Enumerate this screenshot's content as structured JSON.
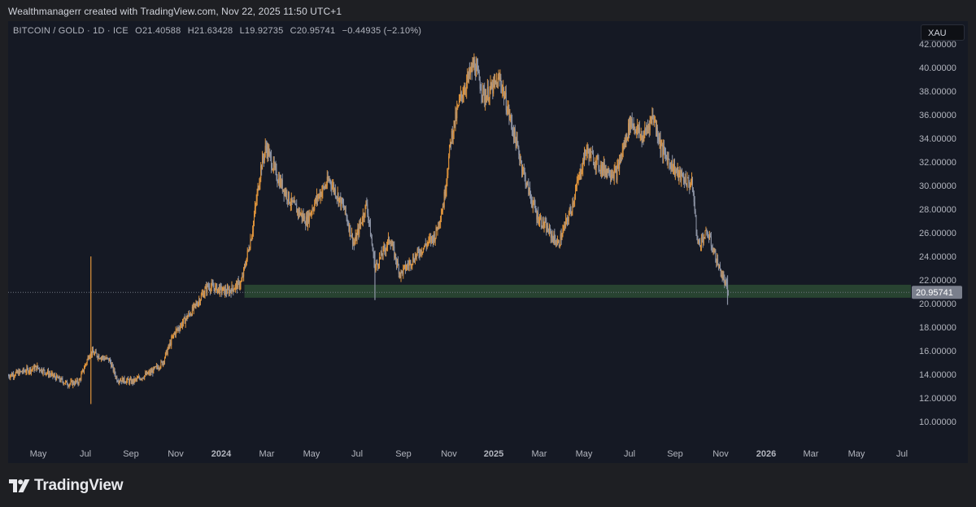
{
  "header": {
    "credit": "Wealthmanagerr created with TradingView.com, Nov 22, 2025 11:50 UTC+1"
  },
  "legend": {
    "symbol": "BITCOIN / GOLD · 1D · ICE",
    "open_label": "O",
    "open": "21.40588",
    "high_label": "H",
    "high": "21.63428",
    "low_label": "L",
    "low": "19.92735",
    "close_label": "C",
    "close": "20.95741",
    "change": "−0.44935 (−2.10%)"
  },
  "symbol_badge": "XAU",
  "branding": {
    "name": "TradingView",
    "icon": "tradingview-logo-icon"
  },
  "colors": {
    "background": "#151924",
    "up": "#e0943b",
    "down": "#8e95a6",
    "support_zone": "#2b4b34",
    "last_price_label": "#7a7f8c",
    "axis_text": "#b2b5be"
  },
  "chart_data": {
    "type": "candlestick",
    "title": "BITCOIN / GOLD · 1D · ICE",
    "xlabel": "",
    "ylabel": "",
    "ylim": [
      8.5,
      43.3
    ],
    "y_ticks": [
      "42.00000",
      "40.00000",
      "38.00000",
      "36.00000",
      "34.00000",
      "32.00000",
      "30.00000",
      "28.00000",
      "26.00000",
      "24.00000",
      "22.00000",
      "20.00000",
      "18.00000",
      "16.00000",
      "14.00000",
      "12.00000",
      "10.00000"
    ],
    "x_ticks": [
      "May",
      "Jul",
      "Sep",
      "Nov",
      "2024",
      "Mar",
      "May",
      "Jul",
      "Sep",
      "Nov",
      "2025",
      "Mar",
      "May",
      "Jul",
      "Sep",
      "Nov",
      "2026",
      "Mar",
      "May",
      "Jul"
    ],
    "x_ticks_bold": [
      "2024",
      "2025",
      "2026"
    ],
    "x_range": [
      "2023-04-01",
      "2026-07-25"
    ],
    "last_price": "20.95741",
    "support_zone": [
      20.5,
      21.6
    ],
    "grid": false,
    "legend_position": "top-left",
    "approx_close_path": [
      [
        "2023-04-01",
        13.9
      ],
      [
        "2023-05-10",
        14.6
      ],
      [
        "2023-06-20",
        13.2
      ],
      [
        "2023-07-05",
        13.4
      ],
      [
        "2023-07-20",
        15.9
      ],
      [
        "2023-08-15",
        15.2
      ],
      [
        "2023-08-25",
        13.6
      ],
      [
        "2023-09-15",
        13.4
      ],
      [
        "2023-10-10",
        14.2
      ],
      [
        "2023-10-25",
        15.0
      ],
      [
        "2023-11-10",
        17.5
      ],
      [
        "2023-12-05",
        19.5
      ],
      [
        "2023-12-25",
        21.5
      ],
      [
        "2024-01-20",
        21.0
      ],
      [
        "2024-02-08",
        21.8
      ],
      [
        "2024-02-22",
        26.0
      ],
      [
        "2024-03-05",
        31.5
      ],
      [
        "2024-03-12",
        33.3
      ],
      [
        "2024-03-25",
        31.0
      ],
      [
        "2024-04-15",
        28.5
      ],
      [
        "2024-05-05",
        27.0
      ],
      [
        "2024-05-20",
        29.0
      ],
      [
        "2024-06-05",
        30.5
      ],
      [
        "2024-06-25",
        28.0
      ],
      [
        "2024-07-08",
        25.0
      ],
      [
        "2024-07-25",
        28.5
      ],
      [
        "2024-08-05",
        23.0
      ],
      [
        "2024-08-25",
        25.5
      ],
      [
        "2024-09-08",
        22.5
      ],
      [
        "2024-10-05",
        24.5
      ],
      [
        "2024-10-25",
        25.8
      ],
      [
        "2024-11-05",
        28.5
      ],
      [
        "2024-11-15",
        34.0
      ],
      [
        "2024-11-28",
        37.5
      ],
      [
        "2024-12-16",
        40.3
      ],
      [
        "2024-12-30",
        37.5
      ],
      [
        "2025-01-20",
        39.0
      ],
      [
        "2025-02-05",
        35.0
      ],
      [
        "2025-02-25",
        30.0
      ],
      [
        "2025-03-10",
        27.5
      ],
      [
        "2025-04-08",
        25.0
      ],
      [
        "2025-04-25",
        28.0
      ],
      [
        "2025-05-15",
        33.0
      ],
      [
        "2025-06-05",
        31.5
      ],
      [
        "2025-06-25",
        31.0
      ],
      [
        "2025-07-14",
        35.5
      ],
      [
        "2025-07-30",
        34.0
      ],
      [
        "2025-08-13",
        36.0
      ],
      [
        "2025-08-25",
        33.0
      ],
      [
        "2025-09-15",
        31.0
      ],
      [
        "2025-10-05",
        30.0
      ],
      [
        "2025-10-12",
        25.0
      ],
      [
        "2025-10-25",
        26.0
      ],
      [
        "2025-11-10",
        23.0
      ],
      [
        "2025-11-22",
        20.96
      ]
    ]
  }
}
